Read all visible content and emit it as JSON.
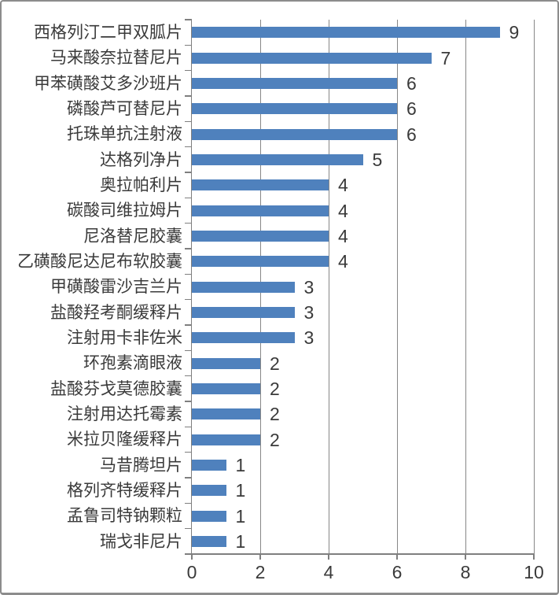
{
  "chart_data": {
    "type": "bar",
    "orientation": "horizontal",
    "title": "",
    "categories": [
      "西格列汀二甲双胍片",
      "马来酸奈拉替尼片",
      "甲苯磺酸艾多沙班片",
      "磷酸芦可替尼片",
      "托珠单抗注射液",
      "达格列净片",
      "奥拉帕利片",
      "碳酸司维拉姆片",
      "尼洛替尼胶囊",
      "乙磺酸尼达尼布软胶囊",
      "甲磺酸雷沙吉兰片",
      "盐酸羟考酮缓释片",
      "注射用卡非佐米",
      "环孢素滴眼液",
      "盐酸芬戈莫德胶囊",
      "注射用达托霉素",
      "米拉贝隆缓释片",
      "马昔腾坦片",
      "格列齐特缓释片",
      "孟鲁司特钠颗粒",
      "瑞戈非尼片"
    ],
    "values": [
      9,
      7,
      6,
      6,
      6,
      5,
      4,
      4,
      4,
      4,
      3,
      3,
      3,
      2,
      2,
      2,
      2,
      1,
      1,
      1,
      1
    ],
    "data_labels": [
      "9",
      "7",
      "6",
      "6",
      "6",
      "5",
      "4",
      "4",
      "4",
      "4",
      "3",
      "3",
      "3",
      "2",
      "2",
      "2",
      "2",
      "1",
      "1",
      "1",
      "1"
    ],
    "xlim": [
      0,
      10
    ],
    "x_ticks": [
      "0",
      "2",
      "4",
      "6",
      "8",
      "10"
    ],
    "grid": true,
    "legend": false,
    "data_labels_visible": true,
    "xlabel": "",
    "ylabel": "",
    "colors": {
      "bar": "#4F81BD",
      "gridline": "#878787",
      "axis": "#7F7F7F",
      "text": "#3A3A3A",
      "frame_border": "#8C8C8C",
      "background": "#FFFFFF"
    }
  }
}
